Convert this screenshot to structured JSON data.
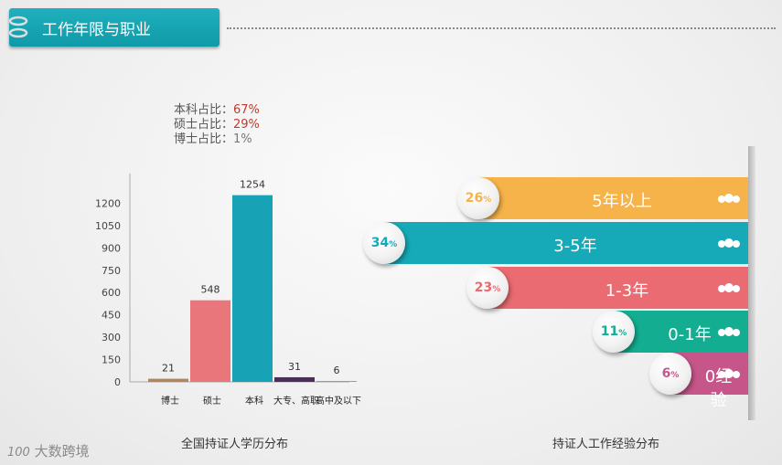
{
  "header": {
    "title": "工作年限与职业"
  },
  "stats": [
    {
      "label": "本科占比：",
      "value": "67%"
    },
    {
      "label": "硕士占比：",
      "value": "29%"
    },
    {
      "label": "博士占比：",
      "value": "1%"
    }
  ],
  "chart_data": [
    {
      "type": "bar",
      "title": "全国持证人学历分布",
      "categories": [
        "博士",
        "硕士",
        "本科",
        "大专、高职",
        "高中及以下"
      ],
      "values": [
        21,
        548,
        1254,
        31,
        6
      ],
      "colors": [
        "#b5855a",
        "#e8767a",
        "#17a3b5",
        "#4a2d5e",
        "#999999"
      ],
      "yticks": [
        0,
        150,
        300,
        450,
        600,
        750,
        900,
        1050,
        1200
      ],
      "ylim": [
        0,
        1350
      ]
    },
    {
      "type": "bar",
      "title": "持证人工作经验分布",
      "categories": [
        "5年以上",
        "3-5年",
        "1-3年",
        "0-1年",
        "0经验"
      ],
      "values": [
        26,
        34,
        23,
        11,
        6
      ],
      "unit": "%",
      "colors": [
        "#f6b34a",
        "#16a9b8",
        "#ea6b71",
        "#13ad92",
        "#c6568a"
      ]
    }
  ],
  "watermark": "大数跨境",
  "watermark_prefix": "100"
}
